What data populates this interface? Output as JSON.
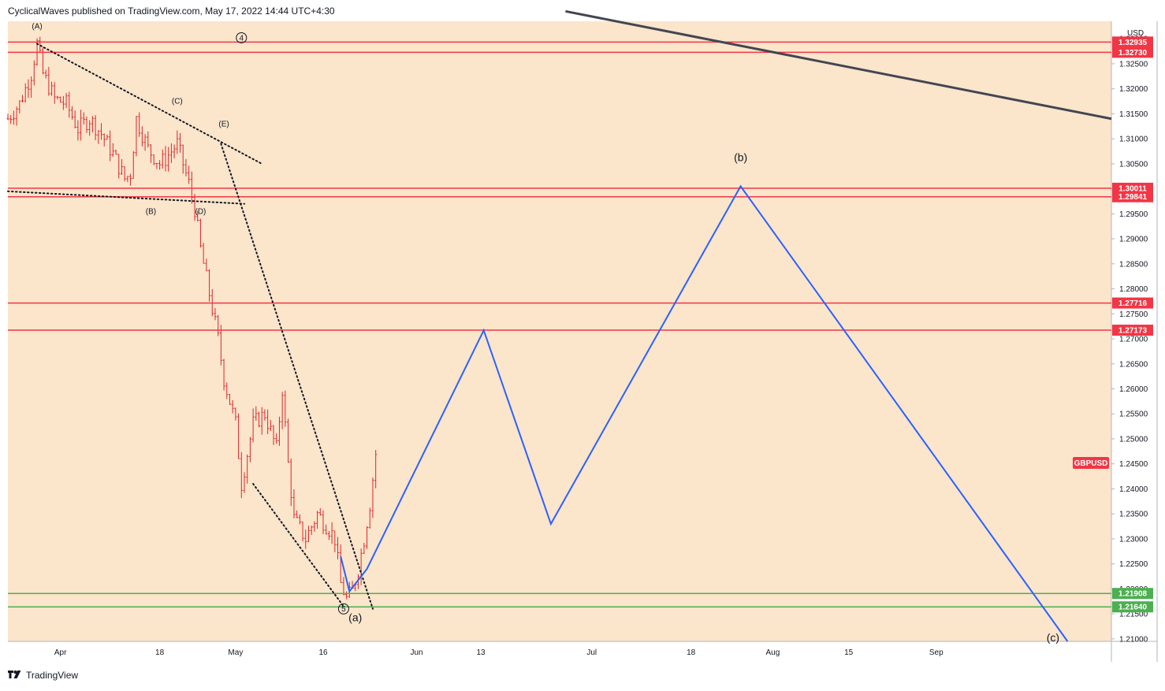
{
  "header": {
    "text": "CyclicalWaves published on TradingView.com, May 17, 2022 14:44 UTC+4:30"
  },
  "footer": {
    "brand": "TradingView",
    "logo_icon": "tradingview-logo-icon"
  },
  "colors": {
    "plot_bg": "#fbe5cb",
    "red_level": "#f23645",
    "green_level": "#4caf50",
    "projection": "#2962ff",
    "trendline": "#434651",
    "candle": "#e0262a",
    "dotted": "#131722"
  },
  "chart_data": {
    "type": "candlestick",
    "symbol": "GBPUSD",
    "currency": "USD",
    "x_ticks": [
      "Apr",
      "18",
      "May",
      "16",
      "Jun",
      "13",
      "Jul",
      "18",
      "Aug",
      "15",
      "Sep"
    ],
    "y_ticks": [
      "1.21000",
      "1.21500",
      "1.22000",
      "1.22500",
      "1.23000",
      "1.23500",
      "1.24000",
      "1.24500",
      "1.25000",
      "1.25500",
      "1.26000",
      "1.26500",
      "1.27000",
      "1.27500",
      "1.28000",
      "1.28500",
      "1.29000",
      "1.29500",
      "1.30000",
      "1.30500",
      "1.31000",
      "1.31500",
      "1.32000",
      "1.32500",
      "1.33000"
    ],
    "ylim": [
      1.2095,
      1.3335
    ],
    "horizontal_levels": [
      {
        "value": 1.32935,
        "label": "1.32935",
        "kind": "red"
      },
      {
        "value": 1.3273,
        "label": "1.32730",
        "kind": "red"
      },
      {
        "value": 1.30011,
        "label": "1.30011",
        "kind": "red"
      },
      {
        "value": 1.29841,
        "label": "1.29841",
        "kind": "red"
      },
      {
        "value": 1.27716,
        "label": "1.27716",
        "kind": "red"
      },
      {
        "value": 1.27173,
        "label": "1.27173",
        "kind": "red"
      },
      {
        "value": 1.21908,
        "label": "1.21908",
        "kind": "green"
      },
      {
        "value": 1.2164,
        "label": "1.21640",
        "kind": "green"
      }
    ],
    "price_path": [
      {
        "t": 0,
        "p": 1.314
      },
      {
        "t": 2,
        "p": 1.317
      },
      {
        "t": 4,
        "p": 1.323
      },
      {
        "t": 5,
        "p": 1.329
      },
      {
        "t": 6,
        "p": 1.323
      },
      {
        "t": 8,
        "p": 1.318
      },
      {
        "t": 10,
        "p": 1.317
      },
      {
        "t": 12,
        "p": 1.312
      },
      {
        "t": 14,
        "p": 1.314
      },
      {
        "t": 16,
        "p": 1.311
      },
      {
        "t": 18,
        "p": 1.307
      },
      {
        "t": 20,
        "p": 1.302
      },
      {
        "t": 21,
        "p": 1.303
      },
      {
        "t": 22,
        "p": 1.314
      },
      {
        "t": 24,
        "p": 1.308
      },
      {
        "t": 26,
        "p": 1.305
      },
      {
        "t": 27,
        "p": 1.306
      },
      {
        "t": 29,
        "p": 1.309
      },
      {
        "t": 31,
        "p": 1.301
      },
      {
        "t": 32,
        "p": 1.296
      },
      {
        "t": 33,
        "p": 1.288
      },
      {
        "t": 34,
        "p": 1.282
      },
      {
        "t": 35,
        "p": 1.276
      },
      {
        "t": 36,
        "p": 1.27
      },
      {
        "t": 37,
        "p": 1.262
      },
      {
        "t": 39,
        "p": 1.253
      },
      {
        "t": 40,
        "p": 1.241
      },
      {
        "t": 42,
        "p": 1.253
      },
      {
        "t": 44,
        "p": 1.255
      },
      {
        "t": 46,
        "p": 1.248
      },
      {
        "t": 47,
        "p": 1.26
      },
      {
        "t": 48,
        "p": 1.245
      },
      {
        "t": 49,
        "p": 1.234
      },
      {
        "t": 51,
        "p": 1.23
      },
      {
        "t": 53,
        "p": 1.235
      },
      {
        "t": 55,
        "p": 1.232
      },
      {
        "t": 56,
        "p": 1.23
      },
      {
        "t": 57,
        "p": 1.221
      },
      {
        "t": 58,
        "p": 1.218
      },
      {
        "t": 59,
        "p": 1.2195
      },
      {
        "t": 60,
        "p": 1.224
      },
      {
        "t": 61,
        "p": 1.23
      },
      {
        "t": 62,
        "p": 1.237
      },
      {
        "t": 63,
        "p": 1.247
      }
    ],
    "projection_path": [
      {
        "t": 57,
        "p": 1.2265
      },
      {
        "t": 58.5,
        "p": 1.2195
      },
      {
        "t": 61.5,
        "p": 1.224
      },
      {
        "t": 81.5,
        "p": 1.2717
      },
      {
        "t": 93,
        "p": 1.233
      },
      {
        "t": 125.5,
        "p": 1.3005
      },
      {
        "t": 181.5,
        "p": 1.2095
      }
    ],
    "dotted_lines": [
      {
        "from": {
          "t": 5,
          "p": 1.329
        },
        "to": {
          "t": 43.5,
          "p": 1.305
        }
      },
      {
        "from": {
          "t": 0,
          "p": 1.2995
        },
        "to": {
          "t": 40.5,
          "p": 1.297
        }
      },
      {
        "from": {
          "t": 36.5,
          "p": 1.309
        },
        "to": {
          "t": 62.5,
          "p": 1.216
        }
      },
      {
        "from": {
          "t": 42,
          "p": 1.241
        },
        "to": {
          "t": 57.5,
          "p": 1.2165
        }
      }
    ],
    "trendline": {
      "from": {
        "t": 95.5,
        "p": 1.3355
      },
      "to": {
        "t": 189,
        "p": 1.314
      }
    },
    "wave_labels": [
      {
        "text": "(A)",
        "t": 5,
        "p": 1.332,
        "size": "small"
      },
      {
        "text": "(C)",
        "t": 29,
        "p": 1.317,
        "size": "small"
      },
      {
        "text": "(E)",
        "t": 37,
        "p": 1.3125,
        "size": "small"
      },
      {
        "text": "(B)",
        "t": 24.5,
        "p": 1.295,
        "size": "small"
      },
      {
        "text": "(D)",
        "t": 33,
        "p": 1.295,
        "size": "small"
      },
      {
        "text": "4",
        "t": 40,
        "p": 1.3302,
        "size": "circled"
      },
      {
        "text": "5",
        "t": 57.5,
        "p": 1.216,
        "size": "circled"
      },
      {
        "text": "(a)",
        "t": 59.5,
        "p": 1.2135,
        "size": "big"
      },
      {
        "text": "(b)",
        "t": 125.5,
        "p": 1.3055,
        "size": "big"
      },
      {
        "text": "(c)",
        "t": 179,
        "p": 1.2095,
        "size": "big"
      }
    ],
    "grid": false,
    "legend": "none"
  }
}
